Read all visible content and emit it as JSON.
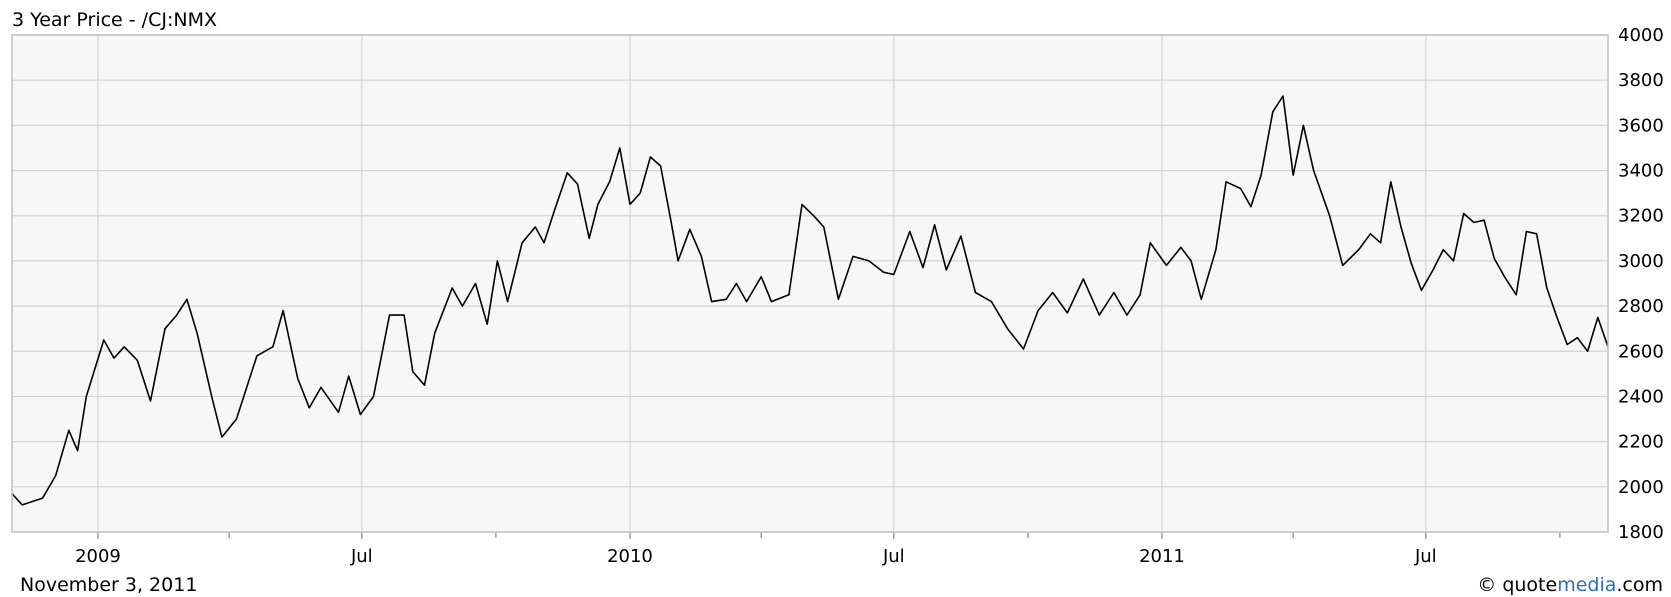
{
  "chart_data": {
    "type": "line",
    "title": "3 Year Price - /CJ:NMX",
    "date": "November 3, 2011",
    "credit_prefix": "© quote",
    "credit_highlight": "media",
    "credit_suffix": ".com",
    "xlabel": "",
    "ylabel": "",
    "ylim": [
      1800,
      4000
    ],
    "yticks": [
      1800,
      2000,
      2200,
      2400,
      2600,
      2800,
      3000,
      3200,
      3400,
      3600,
      3800,
      4000
    ],
    "xlim": [
      "2008-11-03",
      "2011-11-03"
    ],
    "xticks": [
      {
        "date": "2009-01-01",
        "label": "2009"
      },
      {
        "date": "2009-07-01",
        "label": "Jul"
      },
      {
        "date": "2010-01-01",
        "label": "2010"
      },
      {
        "date": "2010-07-01",
        "label": "Jul"
      },
      {
        "date": "2011-01-01",
        "label": "2011"
      },
      {
        "date": "2011-07-01",
        "label": "Jul"
      }
    ],
    "minor_xticks": [
      "2009-04-01",
      "2009-10-01",
      "2010-04-01",
      "2010-10-01",
      "2011-04-01",
      "2011-10-01"
    ],
    "grid": true,
    "series": [
      {
        "color": "#000000",
        "points": [
          [
            "2008-11-03",
            1970
          ],
          [
            "2008-11-10",
            1920
          ],
          [
            "2008-11-24",
            1950
          ],
          [
            "2008-12-03",
            2050
          ],
          [
            "2008-12-12",
            2250
          ],
          [
            "2008-12-18",
            2160
          ],
          [
            "2008-12-24",
            2400
          ],
          [
            "2009-01-05",
            2650
          ],
          [
            "2009-01-12",
            2570
          ],
          [
            "2009-01-19",
            2620
          ],
          [
            "2009-01-28",
            2560
          ],
          [
            "2009-02-06",
            2380
          ],
          [
            "2009-02-16",
            2700
          ],
          [
            "2009-02-24",
            2760
          ],
          [
            "2009-03-03",
            2830
          ],
          [
            "2009-03-10",
            2680
          ],
          [
            "2009-03-20",
            2400
          ],
          [
            "2009-03-27",
            2220
          ],
          [
            "2009-04-06",
            2300
          ],
          [
            "2009-04-20",
            2580
          ],
          [
            "2009-05-01",
            2620
          ],
          [
            "2009-05-08",
            2780
          ],
          [
            "2009-05-18",
            2480
          ],
          [
            "2009-05-26",
            2350
          ],
          [
            "2009-06-03",
            2440
          ],
          [
            "2009-06-15",
            2330
          ],
          [
            "2009-06-22",
            2490
          ],
          [
            "2009-06-30",
            2320
          ],
          [
            "2009-07-09",
            2400
          ],
          [
            "2009-07-20",
            2760
          ],
          [
            "2009-07-30",
            2760
          ],
          [
            "2009-08-05",
            2510
          ],
          [
            "2009-08-13",
            2450
          ],
          [
            "2009-08-20",
            2680
          ],
          [
            "2009-09-01",
            2880
          ],
          [
            "2009-09-08",
            2800
          ],
          [
            "2009-09-17",
            2900
          ],
          [
            "2009-09-25",
            2720
          ],
          [
            "2009-10-02",
            3000
          ],
          [
            "2009-10-09",
            2820
          ],
          [
            "2009-10-19",
            3080
          ],
          [
            "2009-10-28",
            3150
          ],
          [
            "2009-11-03",
            3080
          ],
          [
            "2009-11-10",
            3220
          ],
          [
            "2009-11-19",
            3390
          ],
          [
            "2009-11-26",
            3340
          ],
          [
            "2009-12-04",
            3100
          ],
          [
            "2009-12-10",
            3250
          ],
          [
            "2009-12-18",
            3350
          ],
          [
            "2009-12-25",
            3500
          ],
          [
            "2010-01-01",
            3250
          ],
          [
            "2010-01-08",
            3300
          ],
          [
            "2010-01-15",
            3460
          ],
          [
            "2010-01-22",
            3420
          ],
          [
            "2010-01-29",
            3180
          ],
          [
            "2010-02-03",
            3000
          ],
          [
            "2010-02-11",
            3140
          ],
          [
            "2010-02-19",
            3020
          ],
          [
            "2010-02-26",
            2820
          ],
          [
            "2010-03-08",
            2830
          ],
          [
            "2010-03-15",
            2900
          ],
          [
            "2010-03-22",
            2820
          ],
          [
            "2010-04-01",
            2930
          ],
          [
            "2010-04-08",
            2820
          ],
          [
            "2010-04-20",
            2850
          ],
          [
            "2010-04-29",
            3250
          ],
          [
            "2010-05-07",
            3200
          ],
          [
            "2010-05-14",
            3150
          ],
          [
            "2010-05-24",
            2830
          ],
          [
            "2010-06-03",
            3020
          ],
          [
            "2010-06-14",
            3000
          ],
          [
            "2010-06-24",
            2950
          ],
          [
            "2010-07-01",
            2940
          ],
          [
            "2010-07-12",
            3130
          ],
          [
            "2010-07-21",
            2970
          ],
          [
            "2010-07-29",
            3160
          ],
          [
            "2010-08-06",
            2960
          ],
          [
            "2010-08-16",
            3110
          ],
          [
            "2010-08-26",
            2860
          ],
          [
            "2010-09-06",
            2820
          ],
          [
            "2010-09-17",
            2700
          ],
          [
            "2010-09-28",
            2610
          ],
          [
            "2010-10-08",
            2780
          ],
          [
            "2010-10-18",
            2860
          ],
          [
            "2010-10-28",
            2770
          ],
          [
            "2010-11-08",
            2920
          ],
          [
            "2010-11-19",
            2760
          ],
          [
            "2010-11-29",
            2860
          ],
          [
            "2010-12-08",
            2760
          ],
          [
            "2010-12-17",
            2850
          ],
          [
            "2010-12-24",
            3080
          ],
          [
            "2011-01-04",
            2980
          ],
          [
            "2011-01-14",
            3060
          ],
          [
            "2011-01-21",
            3000
          ],
          [
            "2011-01-28",
            2830
          ],
          [
            "2011-02-07",
            3050
          ],
          [
            "2011-02-14",
            3350
          ],
          [
            "2011-02-24",
            3320
          ],
          [
            "2011-03-03",
            3240
          ],
          [
            "2011-03-10",
            3380
          ],
          [
            "2011-03-18",
            3660
          ],
          [
            "2011-03-25",
            3730
          ],
          [
            "2011-04-01",
            3380
          ],
          [
            "2011-04-08",
            3600
          ],
          [
            "2011-04-15",
            3400
          ],
          [
            "2011-04-26",
            3200
          ],
          [
            "2011-05-05",
            2980
          ],
          [
            "2011-05-16",
            3050
          ],
          [
            "2011-05-24",
            3120
          ],
          [
            "2011-05-31",
            3080
          ],
          [
            "2011-06-07",
            3350
          ],
          [
            "2011-06-14",
            3150
          ],
          [
            "2011-06-21",
            2990
          ],
          [
            "2011-06-28",
            2870
          ],
          [
            "2011-07-06",
            2960
          ],
          [
            "2011-07-13",
            3050
          ],
          [
            "2011-07-20",
            3000
          ],
          [
            "2011-07-27",
            3210
          ],
          [
            "2011-08-03",
            3170
          ],
          [
            "2011-08-10",
            3180
          ],
          [
            "2011-08-17",
            3010
          ],
          [
            "2011-08-24",
            2930
          ],
          [
            "2011-09-01",
            2850
          ],
          [
            "2011-09-08",
            3130
          ],
          [
            "2011-09-15",
            3120
          ],
          [
            "2011-09-22",
            2880
          ],
          [
            "2011-09-29",
            2750
          ],
          [
            "2011-10-06",
            2630
          ],
          [
            "2011-10-13",
            2660
          ],
          [
            "2011-10-20",
            2600
          ],
          [
            "2011-10-27",
            2750
          ],
          [
            "2011-11-03",
            2620
          ]
        ]
      }
    ]
  }
}
